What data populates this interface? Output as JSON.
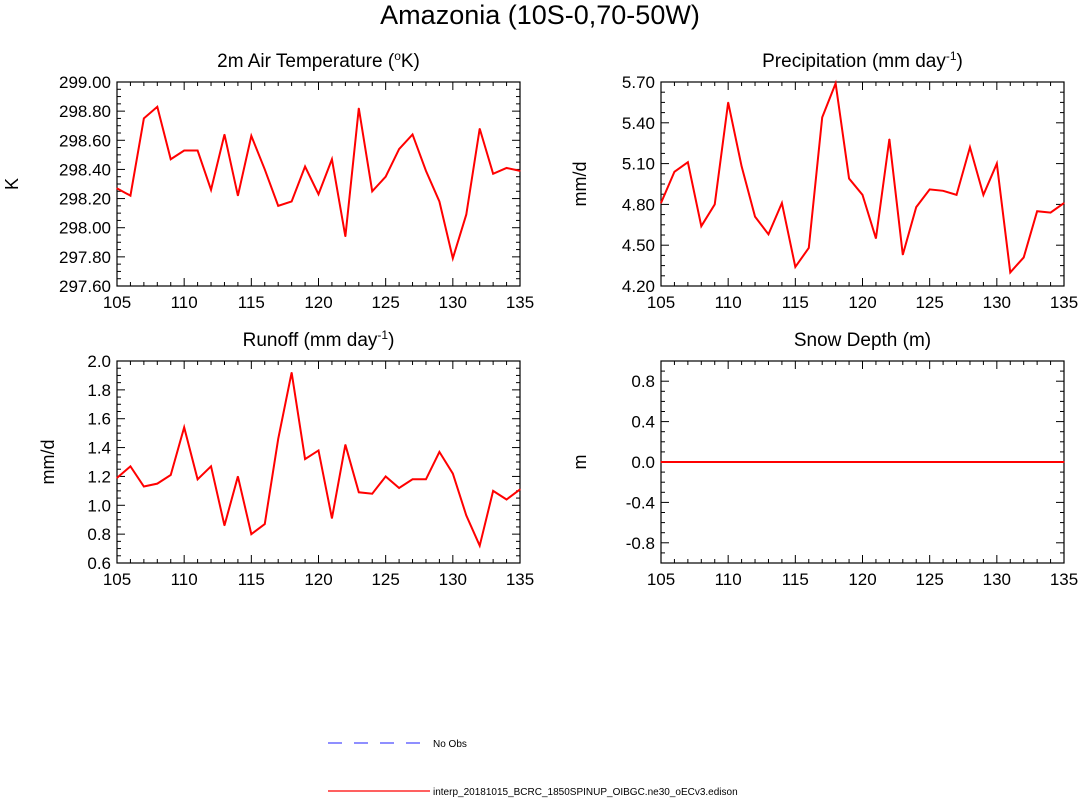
{
  "figure": {
    "title": "Amazonia (10S-0,70-50W)"
  },
  "legend": {
    "entries": [
      {
        "label": "No Obs",
        "color": "#6a6aff",
        "style": "dashed"
      },
      {
        "label": "interp_20181015_BCRC_1850SPINUP_OIBGC.ne30_oECv3.edison",
        "color": "#ff0000",
        "style": "solid"
      }
    ]
  },
  "chart_data": [
    {
      "type": "line",
      "title": "2m Air Temperature (",
      "title_sup_a": "o",
      "title_mid": "K)",
      "title_sup_b": "",
      "title_end": "",
      "ylabel": "K",
      "xlim": [
        105,
        135
      ],
      "ylim": [
        297.6,
        299.0
      ],
      "xticks": [
        105,
        110,
        115,
        120,
        125,
        130,
        135
      ],
      "yticks": [
        297.6,
        297.8,
        298.0,
        298.2,
        298.4,
        298.6,
        298.8,
        299.0
      ],
      "ytick_labels": [
        "297.60",
        "297.80",
        "298.00",
        "298.20",
        "298.40",
        "298.60",
        "298.80",
        "299.00"
      ],
      "grid": false,
      "series": [
        {
          "color": "#ff0000",
          "x": [
            105,
            106,
            107,
            108,
            109,
            110,
            111,
            112,
            113,
            114,
            115,
            116,
            117,
            118,
            119,
            120,
            121,
            122,
            123,
            124,
            125,
            126,
            127,
            128,
            129,
            130,
            131,
            132,
            133,
            134,
            135
          ],
          "values": [
            298.27,
            298.22,
            298.75,
            298.83,
            298.47,
            298.53,
            298.53,
            298.26,
            298.64,
            298.22,
            298.63,
            298.4,
            298.15,
            298.18,
            298.42,
            298.23,
            298.47,
            297.94,
            298.82,
            298.25,
            298.35,
            298.54,
            298.64,
            298.39,
            298.18,
            297.79,
            298.09,
            298.68,
            298.37,
            298.41,
            298.39
          ]
        }
      ]
    },
    {
      "type": "line",
      "title": "Precipitation (mm day",
      "title_sup_a": "-1",
      "title_mid": ")",
      "title_sup_b": "",
      "title_end": "",
      "ylabel": "mm/d",
      "xlim": [
        105,
        135
      ],
      "ylim": [
        4.2,
        5.7
      ],
      "xticks": [
        105,
        110,
        115,
        120,
        125,
        130,
        135
      ],
      "yticks": [
        4.2,
        4.5,
        4.8,
        5.1,
        5.4,
        5.7
      ],
      "ytick_labels": [
        "4.20",
        "4.50",
        "4.80",
        "5.10",
        "5.40",
        "5.70"
      ],
      "grid": false,
      "series": [
        {
          "color": "#ff0000",
          "x": [
            105,
            106,
            107,
            108,
            109,
            110,
            111,
            112,
            113,
            114,
            115,
            116,
            117,
            118,
            119,
            120,
            121,
            122,
            123,
            124,
            125,
            126,
            127,
            128,
            129,
            130,
            131,
            132,
            133,
            134,
            135
          ],
          "values": [
            4.81,
            5.04,
            5.11,
            4.64,
            4.8,
            5.55,
            5.08,
            4.71,
            4.58,
            4.81,
            4.34,
            4.48,
            5.44,
            5.69,
            4.99,
            4.87,
            4.55,
            5.28,
            4.43,
            4.78,
            4.91,
            4.9,
            4.87,
            5.22,
            4.87,
            5.1,
            4.3,
            4.41,
            4.75,
            4.74,
            4.81
          ]
        }
      ]
    },
    {
      "type": "line",
      "title": "Runoff (mm day",
      "title_sup_a": "-1",
      "title_mid": ")",
      "title_sup_b": "",
      "title_end": "",
      "ylabel": "mm/d",
      "xlim": [
        105,
        135
      ],
      "ylim": [
        0.6,
        2.0
      ],
      "xticks": [
        105,
        110,
        115,
        120,
        125,
        130,
        135
      ],
      "yticks": [
        0.6,
        0.8,
        1.0,
        1.2,
        1.4,
        1.6,
        1.8,
        2.0
      ],
      "ytick_labels": [
        "0.6",
        "0.8",
        "1.0",
        "1.2",
        "1.4",
        "1.6",
        "1.8",
        "2.0"
      ],
      "grid": false,
      "series": [
        {
          "color": "#ff0000",
          "x": [
            105,
            106,
            107,
            108,
            109,
            110,
            111,
            112,
            113,
            114,
            115,
            116,
            117,
            118,
            119,
            120,
            121,
            122,
            123,
            124,
            125,
            126,
            127,
            128,
            129,
            130,
            131,
            132,
            133,
            134,
            135
          ],
          "values": [
            1.19,
            1.27,
            1.13,
            1.15,
            1.21,
            1.54,
            1.18,
            1.27,
            0.86,
            1.2,
            0.8,
            0.87,
            1.46,
            1.92,
            1.32,
            1.38,
            0.91,
            1.42,
            1.09,
            1.08,
            1.2,
            1.12,
            1.18,
            1.18,
            1.37,
            1.22,
            0.93,
            0.72,
            1.1,
            1.04,
            1.11
          ]
        }
      ]
    },
    {
      "type": "line",
      "title": "Snow Depth (m)",
      "title_sup_a": "",
      "title_mid": "",
      "title_sup_b": "",
      "title_end": "",
      "ylabel": "m",
      "xlim": [
        105,
        135
      ],
      "ylim": [
        -1.0,
        1.0
      ],
      "xticks": [
        105,
        110,
        115,
        120,
        125,
        130,
        135
      ],
      "yticks": [
        -0.8,
        -0.4,
        0.0,
        0.4,
        0.8
      ],
      "ytick_labels": [
        "-0.8",
        "-0.4",
        "0.0",
        "0.4",
        "0.8"
      ],
      "grid": false,
      "series": [
        {
          "color": "#ff0000",
          "x": [
            105,
            106,
            107,
            108,
            109,
            110,
            111,
            112,
            113,
            114,
            115,
            116,
            117,
            118,
            119,
            120,
            121,
            122,
            123,
            124,
            125,
            126,
            127,
            128,
            129,
            130,
            131,
            132,
            133,
            134,
            135
          ],
          "values": [
            0,
            0,
            0,
            0,
            0,
            0,
            0,
            0,
            0,
            0,
            0,
            0,
            0,
            0,
            0,
            0,
            0,
            0,
            0,
            0,
            0,
            0,
            0,
            0,
            0,
            0,
            0,
            0,
            0,
            0,
            0
          ]
        }
      ]
    }
  ]
}
